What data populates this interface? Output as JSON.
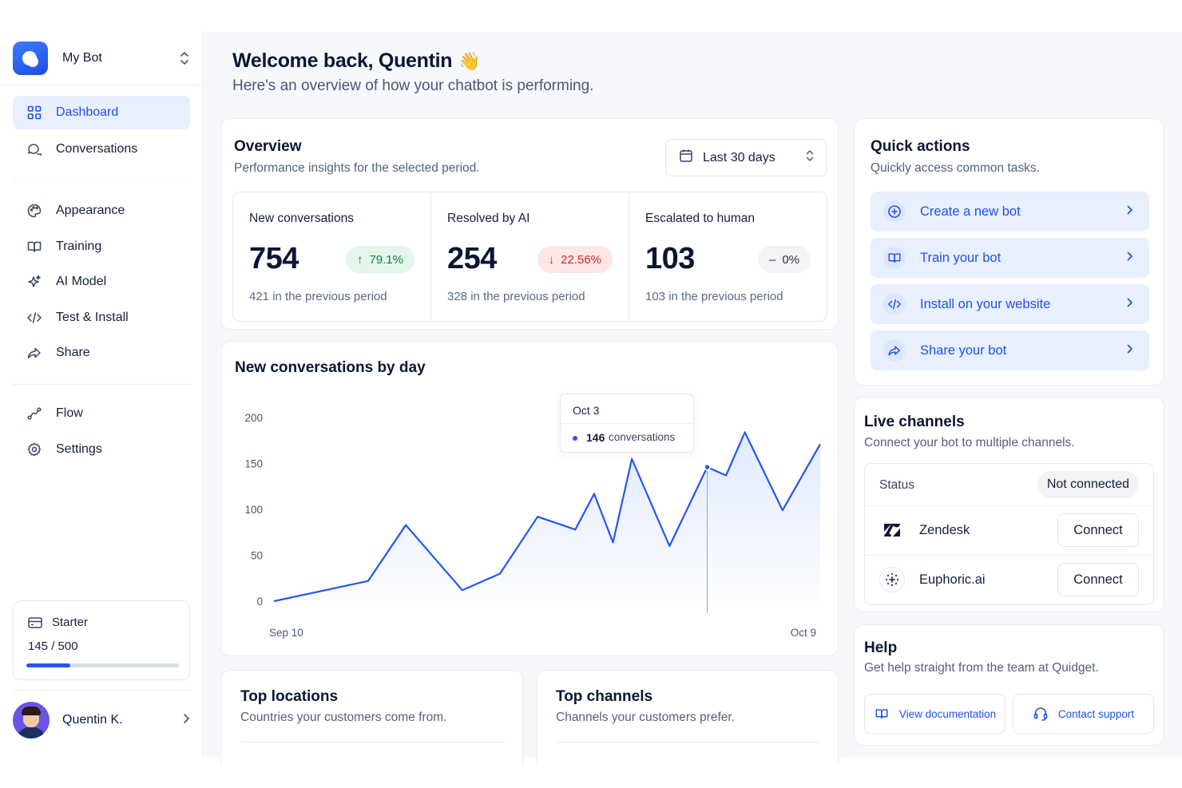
{
  "sidebar": {
    "bot_name": "My Bot",
    "nav_primary": [
      {
        "label": "Dashboard",
        "icon": "grid-icon",
        "active": true
      },
      {
        "label": "Conversations",
        "icon": "chat-bubbles-icon",
        "active": false
      }
    ],
    "nav_secondary": [
      {
        "label": "Appearance",
        "icon": "palette-icon"
      },
      {
        "label": "Training",
        "icon": "book-open-icon"
      },
      {
        "label": "AI Model",
        "icon": "sparkles-icon"
      },
      {
        "label": "Test & Install",
        "icon": "code-icon"
      },
      {
        "label": "Share",
        "icon": "share-arrow-icon"
      }
    ],
    "nav_tertiary": [
      {
        "label": "Flow",
        "icon": "flow-icon"
      },
      {
        "label": "Settings",
        "icon": "gear-icon"
      }
    ],
    "plan": {
      "name": "Starter",
      "usage_text": "145 / 500",
      "used": 145,
      "limit": 500
    },
    "user_name": "Quentin K."
  },
  "header": {
    "welcome": "Welcome back, Quentin",
    "wave": "👋",
    "subtitle": "Here's an overview of how your chatbot is performing."
  },
  "overview": {
    "title": "Overview",
    "subtitle": "Performance insights for the selected period.",
    "date_range": "Last 30 days",
    "stats": [
      {
        "label": "New conversations",
        "value": "754",
        "change": "79.1%",
        "direction": "up",
        "previous": "421 in the previous period"
      },
      {
        "label": "Resolved by AI",
        "value": "254",
        "change": "22.56%",
        "direction": "down",
        "previous": "328 in the previous period"
      },
      {
        "label": "Escalated to human",
        "value": "103",
        "change": "0%",
        "direction": "flat",
        "previous": "103 in the previous period"
      }
    ]
  },
  "chart_data": {
    "type": "area",
    "title": "New conversations by day",
    "x_start_label": "Sep 10",
    "x_end_label": "Oct 9",
    "y_ticks": [
      0,
      50,
      100,
      150,
      200
    ],
    "ylim": [
      0,
      200
    ],
    "points": [
      {
        "x": "Sep 10",
        "y": 0
      },
      {
        "x": "Sep 15",
        "y": 22
      },
      {
        "x": "Sep 17",
        "y": 83
      },
      {
        "x": "Sep 20",
        "y": 12
      },
      {
        "x": "Sep 22",
        "y": 30
      },
      {
        "x": "Sep 24",
        "y": 92
      },
      {
        "x": "Sep 26",
        "y": 78
      },
      {
        "x": "Sep 27",
        "y": 117
      },
      {
        "x": "Sep 28",
        "y": 64
      },
      {
        "x": "Sep 29",
        "y": 155
      },
      {
        "x": "Oct 1",
        "y": 60
      },
      {
        "x": "Oct 3",
        "y": 146
      },
      {
        "x": "Oct 4",
        "y": 137
      },
      {
        "x": "Oct 5",
        "y": 184
      },
      {
        "x": "Oct 7",
        "y": 99
      },
      {
        "x": "Oct 9",
        "y": 171
      }
    ],
    "tooltip": {
      "date": "Oct 3",
      "value": "146",
      "unit": "conversations"
    },
    "colors": {
      "line": "#2457ef",
      "fill": "#dfe8fd"
    },
    "grid": false
  },
  "quick_actions": {
    "title": "Quick actions",
    "subtitle": "Quickly access common tasks.",
    "items": [
      {
        "label": "Create a new bot",
        "icon": "plus-circle-icon"
      },
      {
        "label": "Train your bot",
        "icon": "book-open-icon"
      },
      {
        "label": "Install on your website",
        "icon": "code-icon"
      },
      {
        "label": "Share your bot",
        "icon": "share-arrow-icon"
      }
    ]
  },
  "live_channels": {
    "title": "Live channels",
    "subtitle": "Connect your bot to multiple channels.",
    "status_label": "Status",
    "status_value": "Not connected",
    "channels": [
      {
        "name": "Zendesk",
        "action": "Connect",
        "icon": "zendesk-logo-icon"
      },
      {
        "name": "Euphoric.ai",
        "action": "Connect",
        "icon": "euphoric-logo-icon"
      }
    ]
  },
  "help": {
    "title": "Help",
    "subtitle": "Get help straight from the team at Quidget.",
    "docs_label": "View documentation",
    "support_label": "Contact support"
  },
  "top_locations": {
    "title": "Top locations",
    "subtitle": "Countries your customers come from."
  },
  "top_channels": {
    "title": "Top channels",
    "subtitle": "Channels your customers prefer."
  },
  "colors": {
    "accent": "#2457ef",
    "active_bg": "#e8effd",
    "up": "#16833f",
    "down": "#cc2a2a"
  }
}
